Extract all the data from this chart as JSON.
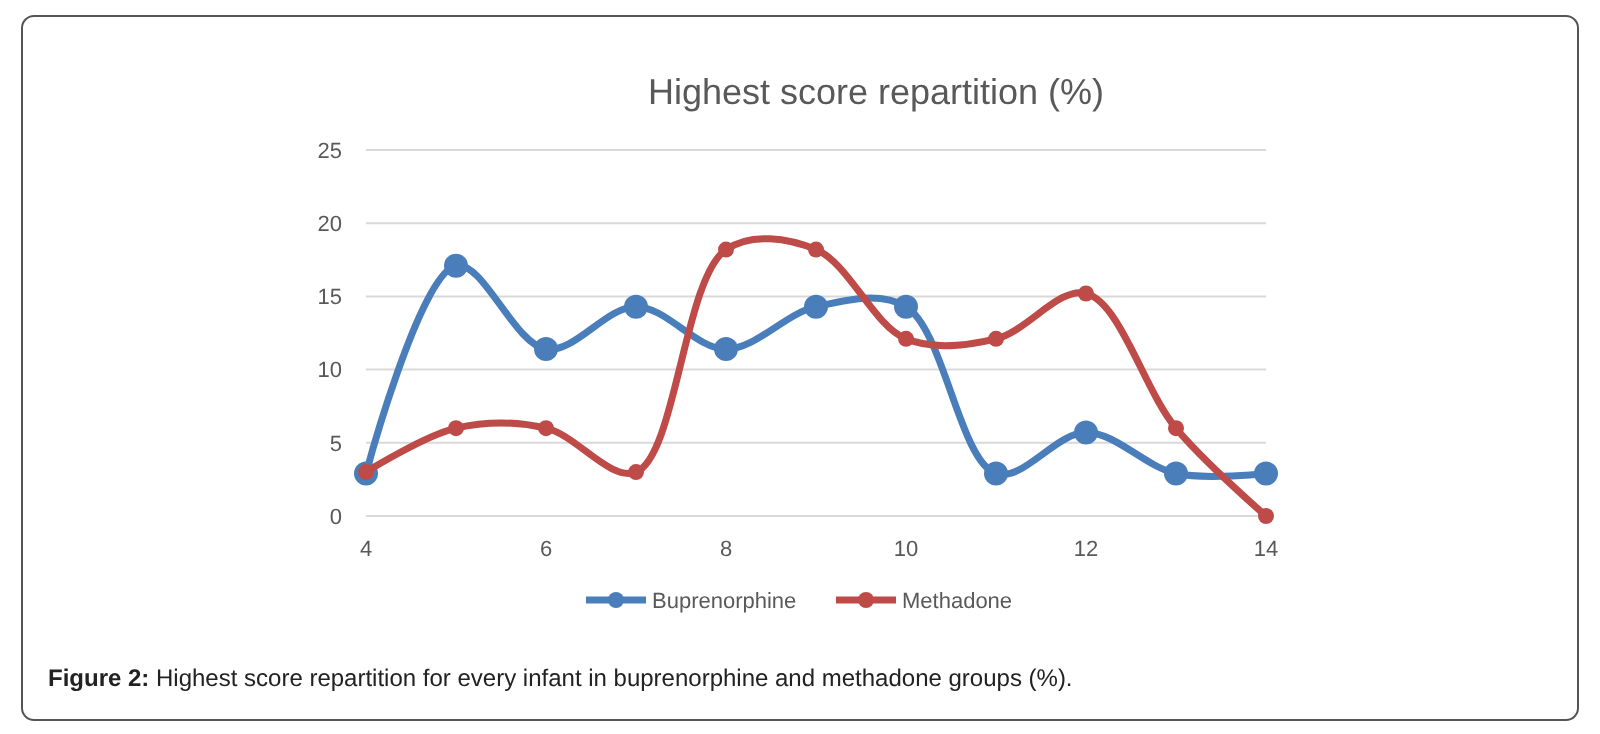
{
  "chart_data": {
    "type": "line",
    "title": "Highest score repartition (%)",
    "x": [
      4,
      5,
      6,
      7,
      8,
      9,
      10,
      11,
      12,
      13,
      14
    ],
    "series": [
      {
        "name": "Buprenorphine",
        "color": "#4a7ebb",
        "values": [
          2.9,
          17.1,
          11.4,
          14.3,
          11.4,
          14.3,
          14.3,
          2.9,
          5.7,
          2.9,
          2.9
        ]
      },
      {
        "name": "Methadone",
        "color": "#be4b48",
        "values": [
          3,
          6,
          6,
          3,
          18.2,
          18.2,
          12.1,
          12.1,
          15.2,
          6,
          0
        ]
      }
    ],
    "xlim": [
      4,
      14
    ],
    "xticks": [
      4,
      6,
      8,
      10,
      12,
      14
    ],
    "ylim": [
      0,
      25
    ],
    "yticks": [
      0,
      5,
      10,
      15,
      20,
      25
    ],
    "grid": "y",
    "legend": "bottom",
    "marker": "circle",
    "line_style": "solid",
    "annotations": [
      "Figure 2: Highest score repartition for every infant in buprenorphine and methadone groups (%)."
    ]
  }
}
